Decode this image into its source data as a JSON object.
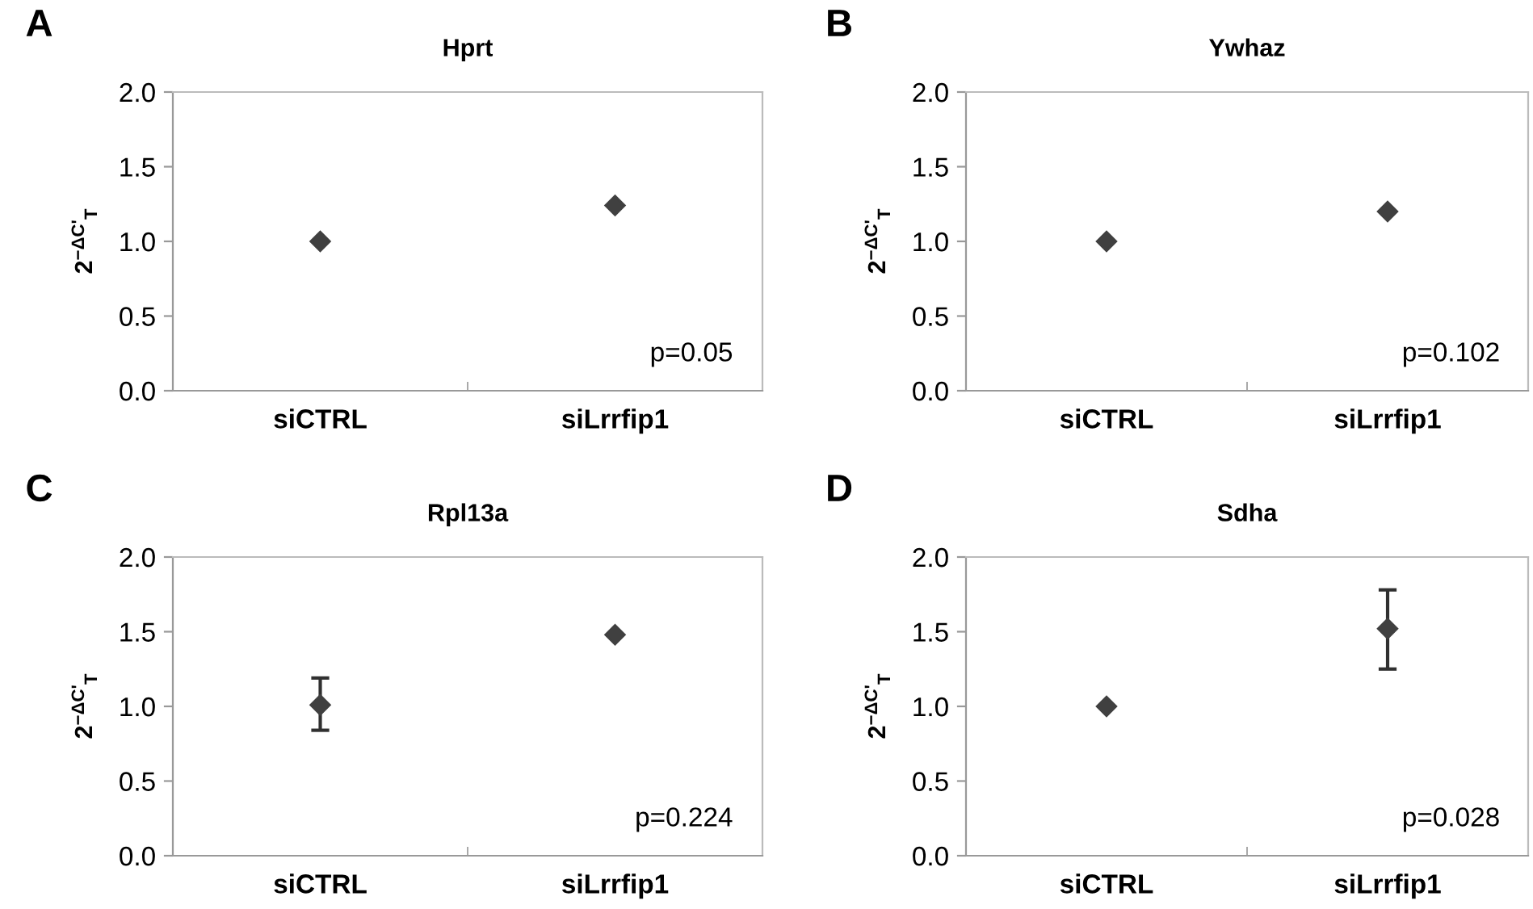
{
  "chart_data": [
    {
      "type": "scatter",
      "title": "Hprt",
      "ylabel": "2$^{−ΔC'}$$_{T}$",
      "categories": [
        "siCTRL",
        "siLrrfip1"
      ],
      "values": [
        1.0,
        1.24
      ],
      "color": "#404040",
      "marker": "diamond",
      "ylim": [
        0,
        2
      ],
      "yticks": [
        {
          "value": 0,
          "label": "0.0"
        },
        {
          "value": 0.5,
          "label": "0.5"
        },
        {
          "value": 1,
          "label": "1.0"
        },
        {
          "value": 1.5,
          "label": "1.5"
        },
        {
          "value": 2,
          "label": "2.0"
        }
      ],
      "grid": false,
      "annotations": [
        "A",
        "p=0.05"
      ]
    },
    {
      "type": "scatter",
      "title": "Ywhaz",
      "ylabel": "2$^{−ΔC'}$$_{T}$",
      "categories": [
        "siCTRL",
        "siLrrfip1"
      ],
      "values": [
        1.0,
        1.2
      ],
      "color": "#404040",
      "marker": "diamond",
      "ylim": [
        0,
        2
      ],
      "yticks": [
        {
          "value": 0,
          "label": "0.0"
        },
        {
          "value": 0.5,
          "label": "0.5"
        },
        {
          "value": 1,
          "label": "1.0"
        },
        {
          "value": 1.5,
          "label": "1.5"
        },
        {
          "value": 2,
          "label": "2.0"
        }
      ],
      "grid": false,
      "annotations": [
        "B",
        "p=0.102"
      ]
    },
    {
      "type": "scatter",
      "title": "Rpl13a",
      "ylabel": "2$^{−ΔC'}$$_{T}$",
      "categories": [
        "siCTRL",
        "siLrrfip1"
      ],
      "values": [
        1.01,
        1.48
      ],
      "errors": [
        [
          0.84,
          1.19
        ],
        null
      ],
      "color": "#404040",
      "marker": "diamond",
      "ylim": [
        0,
        2
      ],
      "yticks": [
        {
          "value": 0,
          "label": "0.0"
        },
        {
          "value": 0.5,
          "label": "0.5"
        },
        {
          "value": 1,
          "label": "1.0"
        },
        {
          "value": 1.5,
          "label": "1.5"
        },
        {
          "value": 2,
          "label": "2.0"
        }
      ],
      "grid": false,
      "annotations": [
        "C",
        "p=0.224"
      ]
    },
    {
      "type": "scatter",
      "title": "Sdha",
      "ylabel": "2$^{−ΔC'}$$_{T}$",
      "categories": [
        "siCTRL",
        "siLrrfip1"
      ],
      "values": [
        1.0,
        1.52
      ],
      "errors": [
        null,
        [
          1.25,
          1.78
        ]
      ],
      "color": "#404040",
      "marker": "diamond",
      "ylim": [
        0,
        2
      ],
      "yticks": [
        {
          "value": 0,
          "label": "0.0"
        },
        {
          "value": 0.5,
          "label": "0.5"
        },
        {
          "value": 1,
          "label": "1.0"
        },
        {
          "value": 1.5,
          "label": "1.5"
        },
        {
          "value": 2,
          "label": "2.0"
        }
      ],
      "grid": false,
      "annotations": [
        "D",
        "p=0.028"
      ]
    }
  ]
}
